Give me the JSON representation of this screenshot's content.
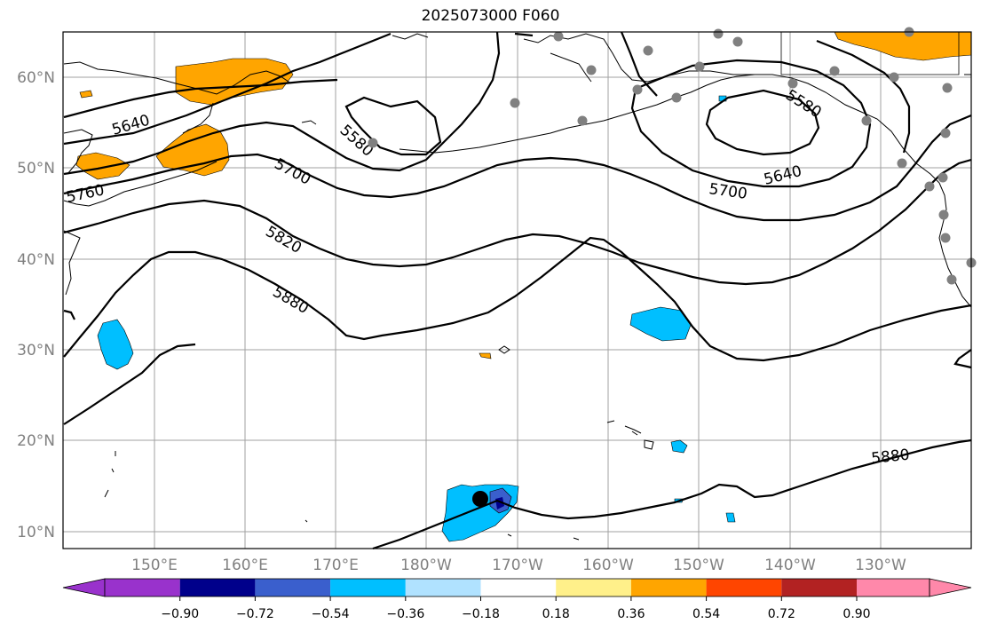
{
  "title": "2025073000 F060",
  "lat_labels": [
    "60°N",
    "50°N",
    "40°N",
    "30°N",
    "20°N",
    "10°N"
  ],
  "lon_labels": [
    "150°E",
    "160°E",
    "170°E",
    "180°W",
    "170°W",
    "160°W",
    "150°W",
    "140°W",
    "130°W"
  ],
  "contour_labels": [
    "5640",
    "5580",
    "5700",
    "5760",
    "5820",
    "5880",
    "5580",
    "5640",
    "5700",
    "5880"
  ],
  "colorbar": {
    "tick_labels": [
      "−0.90",
      "−0.72",
      "−0.54",
      "−0.36",
      "−0.18",
      "0.18",
      "0.36",
      "0.54",
      "0.72",
      "0.90"
    ],
    "colors": [
      "#9932cc",
      "#00008b",
      "#3a5fcd",
      "#00bfff",
      "#b0e2ff",
      "#ffffff",
      "#fff08a",
      "#ffa500",
      "#ff4500",
      "#b22222",
      "#ff88aa"
    ]
  },
  "colors": {
    "positive_fill": "#ffa500",
    "negative_fill": "#00bfff",
    "strong_negative_fill": "#3a5fcd",
    "station": "#808080",
    "marker": "#000000"
  }
}
